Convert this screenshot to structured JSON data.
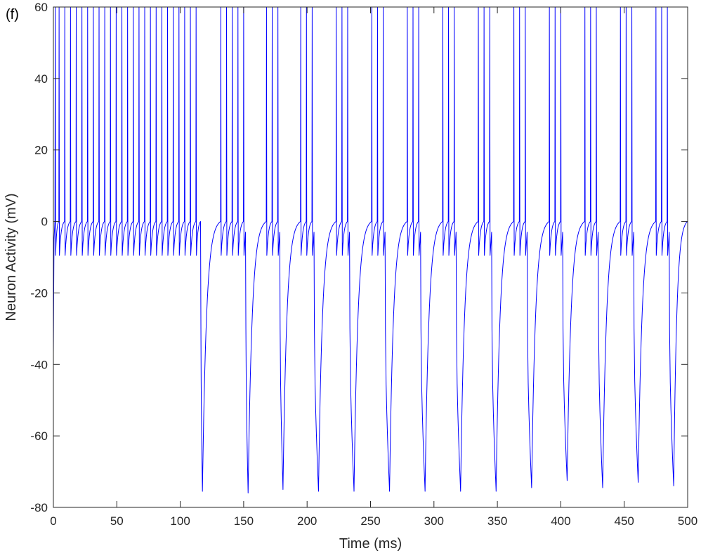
{
  "panel_label": "(f)",
  "chart_data": {
    "type": "line",
    "xlabel": "Time (ms)",
    "ylabel": "Neuron Activity (mV)",
    "xlim": [
      0,
      500
    ],
    "ylim": [
      -80,
      60
    ],
    "xticks": [
      0,
      50,
      100,
      150,
      200,
      250,
      300,
      350,
      400,
      450,
      500
    ],
    "yticks": [
      -80,
      -60,
      -40,
      -20,
      0,
      20,
      40,
      60
    ],
    "grid": false,
    "line_color": "#0000ff",
    "initial_value": -37,
    "spike_peak_shown": 60,
    "reset_value": -9.5,
    "plateau_value": 0,
    "tonic_spike_times": [
      1.5,
      4.5,
      9,
      13.5,
      18,
      22.5,
      27,
      31.5,
      36,
      40.5,
      45,
      49.5,
      54,
      58.5,
      63,
      67.5,
      72,
      76.5,
      81,
      85.5,
      90,
      94.5,
      99,
      103.5,
      108,
      112.5
    ],
    "burst_onset": 116,
    "bursts": [
      {
        "trough_time": 117.5,
        "trough_value": -75.5,
        "spike_times": [
          132,
          136.5,
          141,
          145.5,
          150
        ]
      },
      {
        "trough_time": 153.5,
        "trough_value": -76,
        "spike_times": [
          168,
          172.5,
          177
        ]
      },
      {
        "trough_time": 181,
        "trough_value": -75,
        "spike_times": [
          195,
          199.5,
          204
        ]
      },
      {
        "trough_time": 209,
        "trough_value": -75.5,
        "spike_times": [
          223,
          227.5,
          232
        ]
      },
      {
        "trough_time": 237,
        "trough_value": -75.5,
        "spike_times": [
          251,
          255.5,
          260
        ]
      },
      {
        "trough_time": 265,
        "trough_value": -75.5,
        "spike_times": [
          279,
          283.5,
          288
        ]
      },
      {
        "trough_time": 293,
        "trough_value": -75.5,
        "spike_times": [
          307,
          311.5,
          316
        ]
      },
      {
        "trough_time": 321,
        "trough_value": -75.5,
        "spike_times": [
          335,
          339.5,
          344
        ]
      },
      {
        "trough_time": 349,
        "trough_value": -75.5,
        "spike_times": [
          363,
          367.5,
          372
        ]
      },
      {
        "trough_time": 377,
        "trough_value": -74.5,
        "spike_times": [
          391,
          395.5,
          400
        ]
      },
      {
        "trough_time": 405,
        "trough_value": -72.5,
        "spike_times": [
          419,
          423.5,
          428
        ]
      },
      {
        "trough_time": 433,
        "trough_value": -74.5,
        "spike_times": [
          447,
          451.5,
          456
        ]
      },
      {
        "trough_time": 461,
        "trough_value": -73,
        "spike_times": [
          475,
          479.5,
          484
        ]
      },
      {
        "trough_time": 489,
        "trough_value": -74,
        "spike_times": []
      }
    ]
  }
}
